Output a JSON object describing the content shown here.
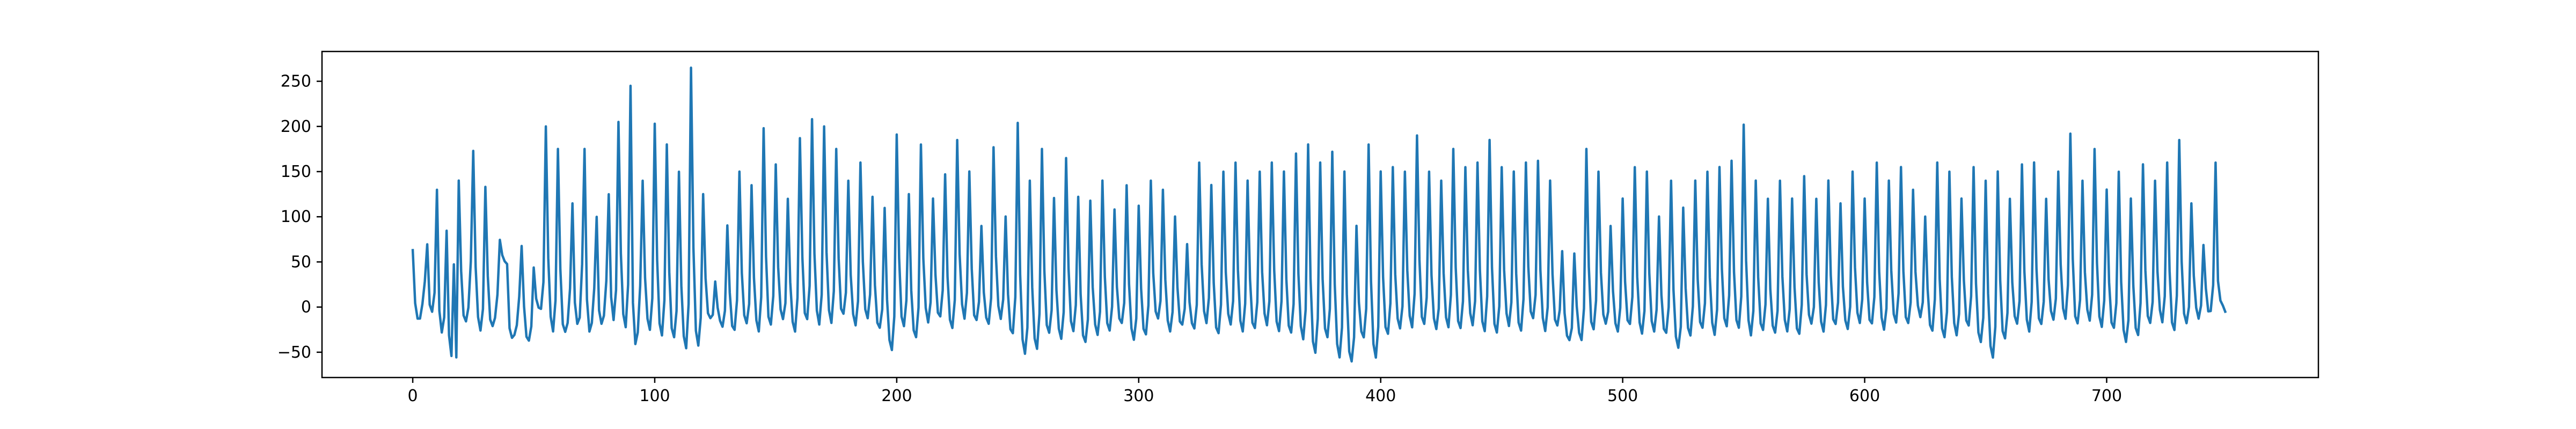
{
  "chart_data": {
    "type": "line",
    "title": "",
    "xlabel": "",
    "ylabel": "",
    "xlim": [
      -37.5,
      787.5
    ],
    "ylim": [
      -78,
      283
    ],
    "x_ticks": [
      0,
      100,
      200,
      300,
      400,
      500,
      600,
      700
    ],
    "y_ticks": [
      -50,
      0,
      50,
      100,
      150,
      200,
      250
    ],
    "x_tick_labels": [
      "0",
      "100",
      "200",
      "300",
      "400",
      "500",
      "600",
      "700"
    ],
    "y_tick_labels": [
      "−50",
      "0",
      "50",
      "100",
      "150",
      "200",
      "250"
    ],
    "grid": false,
    "legend": "none",
    "color": "#1f77b4",
    "n_points": 750,
    "peaks": [
      [
        0,
        63
      ],
      [
        6,
        70
      ],
      [
        10,
        130
      ],
      [
        14,
        85
      ],
      [
        17,
        48
      ],
      [
        19,
        140
      ],
      [
        25,
        173
      ],
      [
        30,
        133
      ],
      [
        36,
        75
      ],
      [
        39,
        48
      ],
      [
        45,
        67
      ],
      [
        50,
        44
      ],
      [
        55,
        200
      ],
      [
        60,
        175
      ],
      [
        66,
        115
      ],
      [
        71,
        175
      ],
      [
        76,
        100
      ],
      [
        81,
        125
      ],
      [
        85,
        205
      ],
      [
        90,
        245
      ],
      [
        95,
        140
      ],
      [
        100,
        203
      ],
      [
        105,
        180
      ],
      [
        110,
        150
      ],
      [
        115,
        265
      ],
      [
        120,
        125
      ],
      [
        125,
        30
      ],
      [
        130,
        90
      ],
      [
        135,
        150
      ],
      [
        140,
        135
      ],
      [
        145,
        198
      ],
      [
        150,
        158
      ],
      [
        155,
        120
      ],
      [
        160,
        187
      ],
      [
        165,
        208
      ],
      [
        170,
        200
      ],
      [
        175,
        175
      ],
      [
        180,
        140
      ],
      [
        185,
        160
      ],
      [
        190,
        122
      ],
      [
        195,
        110
      ],
      [
        200,
        191
      ],
      [
        205,
        125
      ],
      [
        210,
        180
      ],
      [
        215,
        120
      ],
      [
        220,
        147
      ],
      [
        225,
        185
      ],
      [
        230,
        150
      ],
      [
        235,
        90
      ],
      [
        240,
        177
      ],
      [
        245,
        100
      ],
      [
        250,
        204
      ],
      [
        255,
        140
      ],
      [
        260,
        175
      ],
      [
        265,
        121
      ],
      [
        270,
        165
      ],
      [
        275,
        122
      ],
      [
        280,
        118
      ],
      [
        285,
        140
      ],
      [
        290,
        108
      ],
      [
        295,
        135
      ],
      [
        300,
        112
      ],
      [
        305,
        140
      ],
      [
        310,
        130
      ],
      [
        315,
        100
      ],
      [
        320,
        70
      ],
      [
        325,
        160
      ],
      [
        330,
        135
      ],
      [
        335,
        150
      ],
      [
        340,
        160
      ],
      [
        345,
        140
      ],
      [
        350,
        150
      ],
      [
        355,
        160
      ],
      [
        360,
        150
      ],
      [
        365,
        170
      ],
      [
        370,
        180
      ],
      [
        375,
        160
      ],
      [
        380,
        172
      ],
      [
        385,
        150
      ],
      [
        390,
        90
      ],
      [
        395,
        180
      ],
      [
        400,
        150
      ],
      [
        405,
        155
      ],
      [
        410,
        150
      ],
      [
        415,
        190
      ],
      [
        420,
        150
      ],
      [
        425,
        140
      ],
      [
        430,
        175
      ],
      [
        435,
        155
      ],
      [
        440,
        160
      ],
      [
        445,
        185
      ],
      [
        450,
        155
      ],
      [
        455,
        150
      ],
      [
        460,
        160
      ],
      [
        465,
        162
      ],
      [
        470,
        140
      ],
      [
        475,
        62
      ],
      [
        480,
        60
      ],
      [
        485,
        175
      ],
      [
        490,
        150
      ],
      [
        495,
        90
      ],
      [
        500,
        120
      ],
      [
        505,
        155
      ],
      [
        510,
        150
      ],
      [
        515,
        100
      ],
      [
        520,
        140
      ],
      [
        525,
        110
      ],
      [
        530,
        140
      ],
      [
        535,
        150
      ],
      [
        540,
        155
      ],
      [
        545,
        162
      ],
      [
        550,
        202
      ],
      [
        555,
        140
      ],
      [
        560,
        120
      ],
      [
        565,
        140
      ],
      [
        570,
        120
      ],
      [
        575,
        145
      ],
      [
        580,
        120
      ],
      [
        585,
        140
      ],
      [
        590,
        115
      ],
      [
        595,
        150
      ],
      [
        600,
        120
      ],
      [
        605,
        160
      ],
      [
        610,
        140
      ],
      [
        615,
        155
      ],
      [
        620,
        130
      ],
      [
        625,
        100
      ],
      [
        630,
        160
      ],
      [
        635,
        150
      ],
      [
        640,
        120
      ],
      [
        645,
        155
      ],
      [
        650,
        140
      ],
      [
        655,
        150
      ],
      [
        660,
        120
      ],
      [
        665,
        158
      ],
      [
        670,
        160
      ],
      [
        675,
        120
      ],
      [
        680,
        150
      ],
      [
        685,
        192
      ],
      [
        690,
        140
      ],
      [
        695,
        175
      ],
      [
        700,
        130
      ],
      [
        705,
        150
      ],
      [
        710,
        120
      ],
      [
        715,
        158
      ],
      [
        720,
        140
      ],
      [
        725,
        160
      ],
      [
        730,
        185
      ],
      [
        735,
        115
      ],
      [
        740,
        68
      ],
      [
        745,
        160
      ],
      [
        749,
        -2
      ]
    ],
    "troughs": [
      [
        2,
        -12
      ],
      [
        8,
        -8
      ],
      [
        12,
        -30
      ],
      [
        16,
        -55
      ],
      [
        18,
        -55
      ],
      [
        22,
        -15
      ],
      [
        28,
        -25
      ],
      [
        33,
        -20
      ],
      [
        41,
        -35
      ],
      [
        48,
        -37
      ],
      [
        53,
        -5
      ],
      [
        58,
        -25
      ],
      [
        63,
        -28
      ],
      [
        68,
        -20
      ],
      [
        73,
        -25
      ],
      [
        78,
        -20
      ],
      [
        83,
        -15
      ],
      [
        88,
        -20
      ],
      [
        92,
        -40
      ],
      [
        98,
        -25
      ],
      [
        103,
        -30
      ],
      [
        108,
        -35
      ],
      [
        113,
        -45
      ],
      [
        118,
        -42
      ],
      [
        123,
        -15
      ],
      [
        128,
        -20
      ],
      [
        133,
        -25
      ],
      [
        138,
        -20
      ],
      [
        143,
        -25
      ],
      [
        148,
        -20
      ],
      [
        153,
        -15
      ],
      [
        158,
        -25
      ],
      [
        163,
        -15
      ],
      [
        168,
        -20
      ],
      [
        173,
        -15
      ],
      [
        178,
        -10
      ],
      [
        183,
        -20
      ],
      [
        188,
        -10
      ],
      [
        193,
        -25
      ],
      [
        198,
        -47
      ],
      [
        203,
        -20
      ],
      [
        208,
        -35
      ],
      [
        213,
        -15
      ],
      [
        218,
        -10
      ],
      [
        223,
        -25
      ],
      [
        228,
        -10
      ],
      [
        233,
        -15
      ],
      [
        238,
        -20
      ],
      [
        243,
        -10
      ],
      [
        248,
        -30
      ],
      [
        253,
        -52
      ],
      [
        258,
        -45
      ],
      [
        263,
        -30
      ],
      [
        268,
        -35
      ],
      [
        273,
        -25
      ],
      [
        278,
        -40
      ],
      [
        283,
        -30
      ],
      [
        288,
        -25
      ],
      [
        293,
        -20
      ],
      [
        298,
        -35
      ],
      [
        303,
        -30
      ],
      [
        308,
        -15
      ],
      [
        313,
        -25
      ],
      [
        318,
        -20
      ],
      [
        323,
        -25
      ],
      [
        328,
        -15
      ],
      [
        333,
        -30
      ],
      [
        338,
        -20
      ],
      [
        343,
        -25
      ],
      [
        348,
        -25
      ],
      [
        353,
        -20
      ],
      [
        358,
        -25
      ],
      [
        363,
        -30
      ],
      [
        368,
        -35
      ],
      [
        373,
        -50
      ],
      [
        378,
        -35
      ],
      [
        383,
        -55
      ],
      [
        388,
        -60
      ],
      [
        393,
        -35
      ],
      [
        398,
        -55
      ],
      [
        403,
        -30
      ],
      [
        408,
        -25
      ],
      [
        413,
        -20
      ],
      [
        418,
        -20
      ],
      [
        423,
        -25
      ],
      [
        428,
        -20
      ],
      [
        433,
        -25
      ],
      [
        438,
        -20
      ],
      [
        443,
        -25
      ],
      [
        448,
        -30
      ],
      [
        453,
        -20
      ],
      [
        458,
        -25
      ],
      [
        463,
        -15
      ],
      [
        468,
        -25
      ],
      [
        473,
        -20
      ],
      [
        478,
        -38
      ],
      [
        483,
        -35
      ],
      [
        488,
        -25
      ],
      [
        493,
        -20
      ],
      [
        498,
        -25
      ],
      [
        503,
        -20
      ],
      [
        508,
        -30
      ],
      [
        513,
        -25
      ],
      [
        518,
        -30
      ],
      [
        523,
        -45
      ],
      [
        528,
        -30
      ],
      [
        533,
        -25
      ],
      [
        538,
        -30
      ],
      [
        543,
        -20
      ],
      [
        548,
        -25
      ],
      [
        553,
        -30
      ],
      [
        558,
        -25
      ],
      [
        563,
        -30
      ],
      [
        568,
        -25
      ],
      [
        573,
        -30
      ],
      [
        578,
        -20
      ],
      [
        583,
        -25
      ],
      [
        588,
        -20
      ],
      [
        593,
        -25
      ],
      [
        598,
        -15
      ],
      [
        603,
        -20
      ],
      [
        608,
        -25
      ],
      [
        613,
        -15
      ],
      [
        618,
        -20
      ],
      [
        623,
        -10
      ],
      [
        628,
        -25
      ],
      [
        633,
        -35
      ],
      [
        638,
        -30
      ],
      [
        643,
        -20
      ],
      [
        648,
        -40
      ],
      [
        653,
        -55
      ],
      [
        658,
        -35
      ],
      [
        663,
        -20
      ],
      [
        668,
        -25
      ],
      [
        673,
        -20
      ],
      [
        678,
        -15
      ],
      [
        683,
        -10
      ],
      [
        688,
        -20
      ],
      [
        693,
        -15
      ],
      [
        698,
        -20
      ],
      [
        703,
        -25
      ],
      [
        708,
        -38
      ],
      [
        713,
        -30
      ],
      [
        718,
        -20
      ],
      [
        723,
        -15
      ],
      [
        728,
        -25
      ],
      [
        733,
        -20
      ],
      [
        738,
        -10
      ],
      [
        743,
        -5
      ],
      [
        747,
        5
      ]
    ]
  }
}
